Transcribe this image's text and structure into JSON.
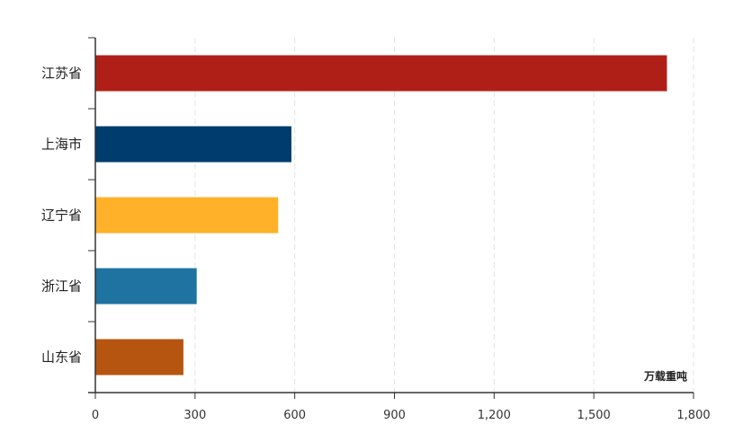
{
  "chart_data": {
    "type": "bar",
    "orientation": "horizontal",
    "categories": [
      "江苏省",
      "上海市",
      "辽宁省",
      "浙江省",
      "山东省"
    ],
    "values": [
      1720,
      590,
      550,
      305,
      265
    ],
    "colors": [
      "#b01f17",
      "#003d6e",
      "#ffb12a",
      "#1f73a0",
      "#b65510"
    ],
    "xlim": [
      0,
      1800
    ],
    "xticks": [
      0,
      300,
      600,
      900,
      1200,
      1500,
      1800
    ],
    "xtick_labels": [
      "0",
      "300",
      "600",
      "900",
      "1,200",
      "1,500",
      "1,800"
    ],
    "unit_label": "万载重吨",
    "title": "",
    "xlabel": "",
    "ylabel": "",
    "grid": "vertical dashed",
    "legend": "none"
  }
}
